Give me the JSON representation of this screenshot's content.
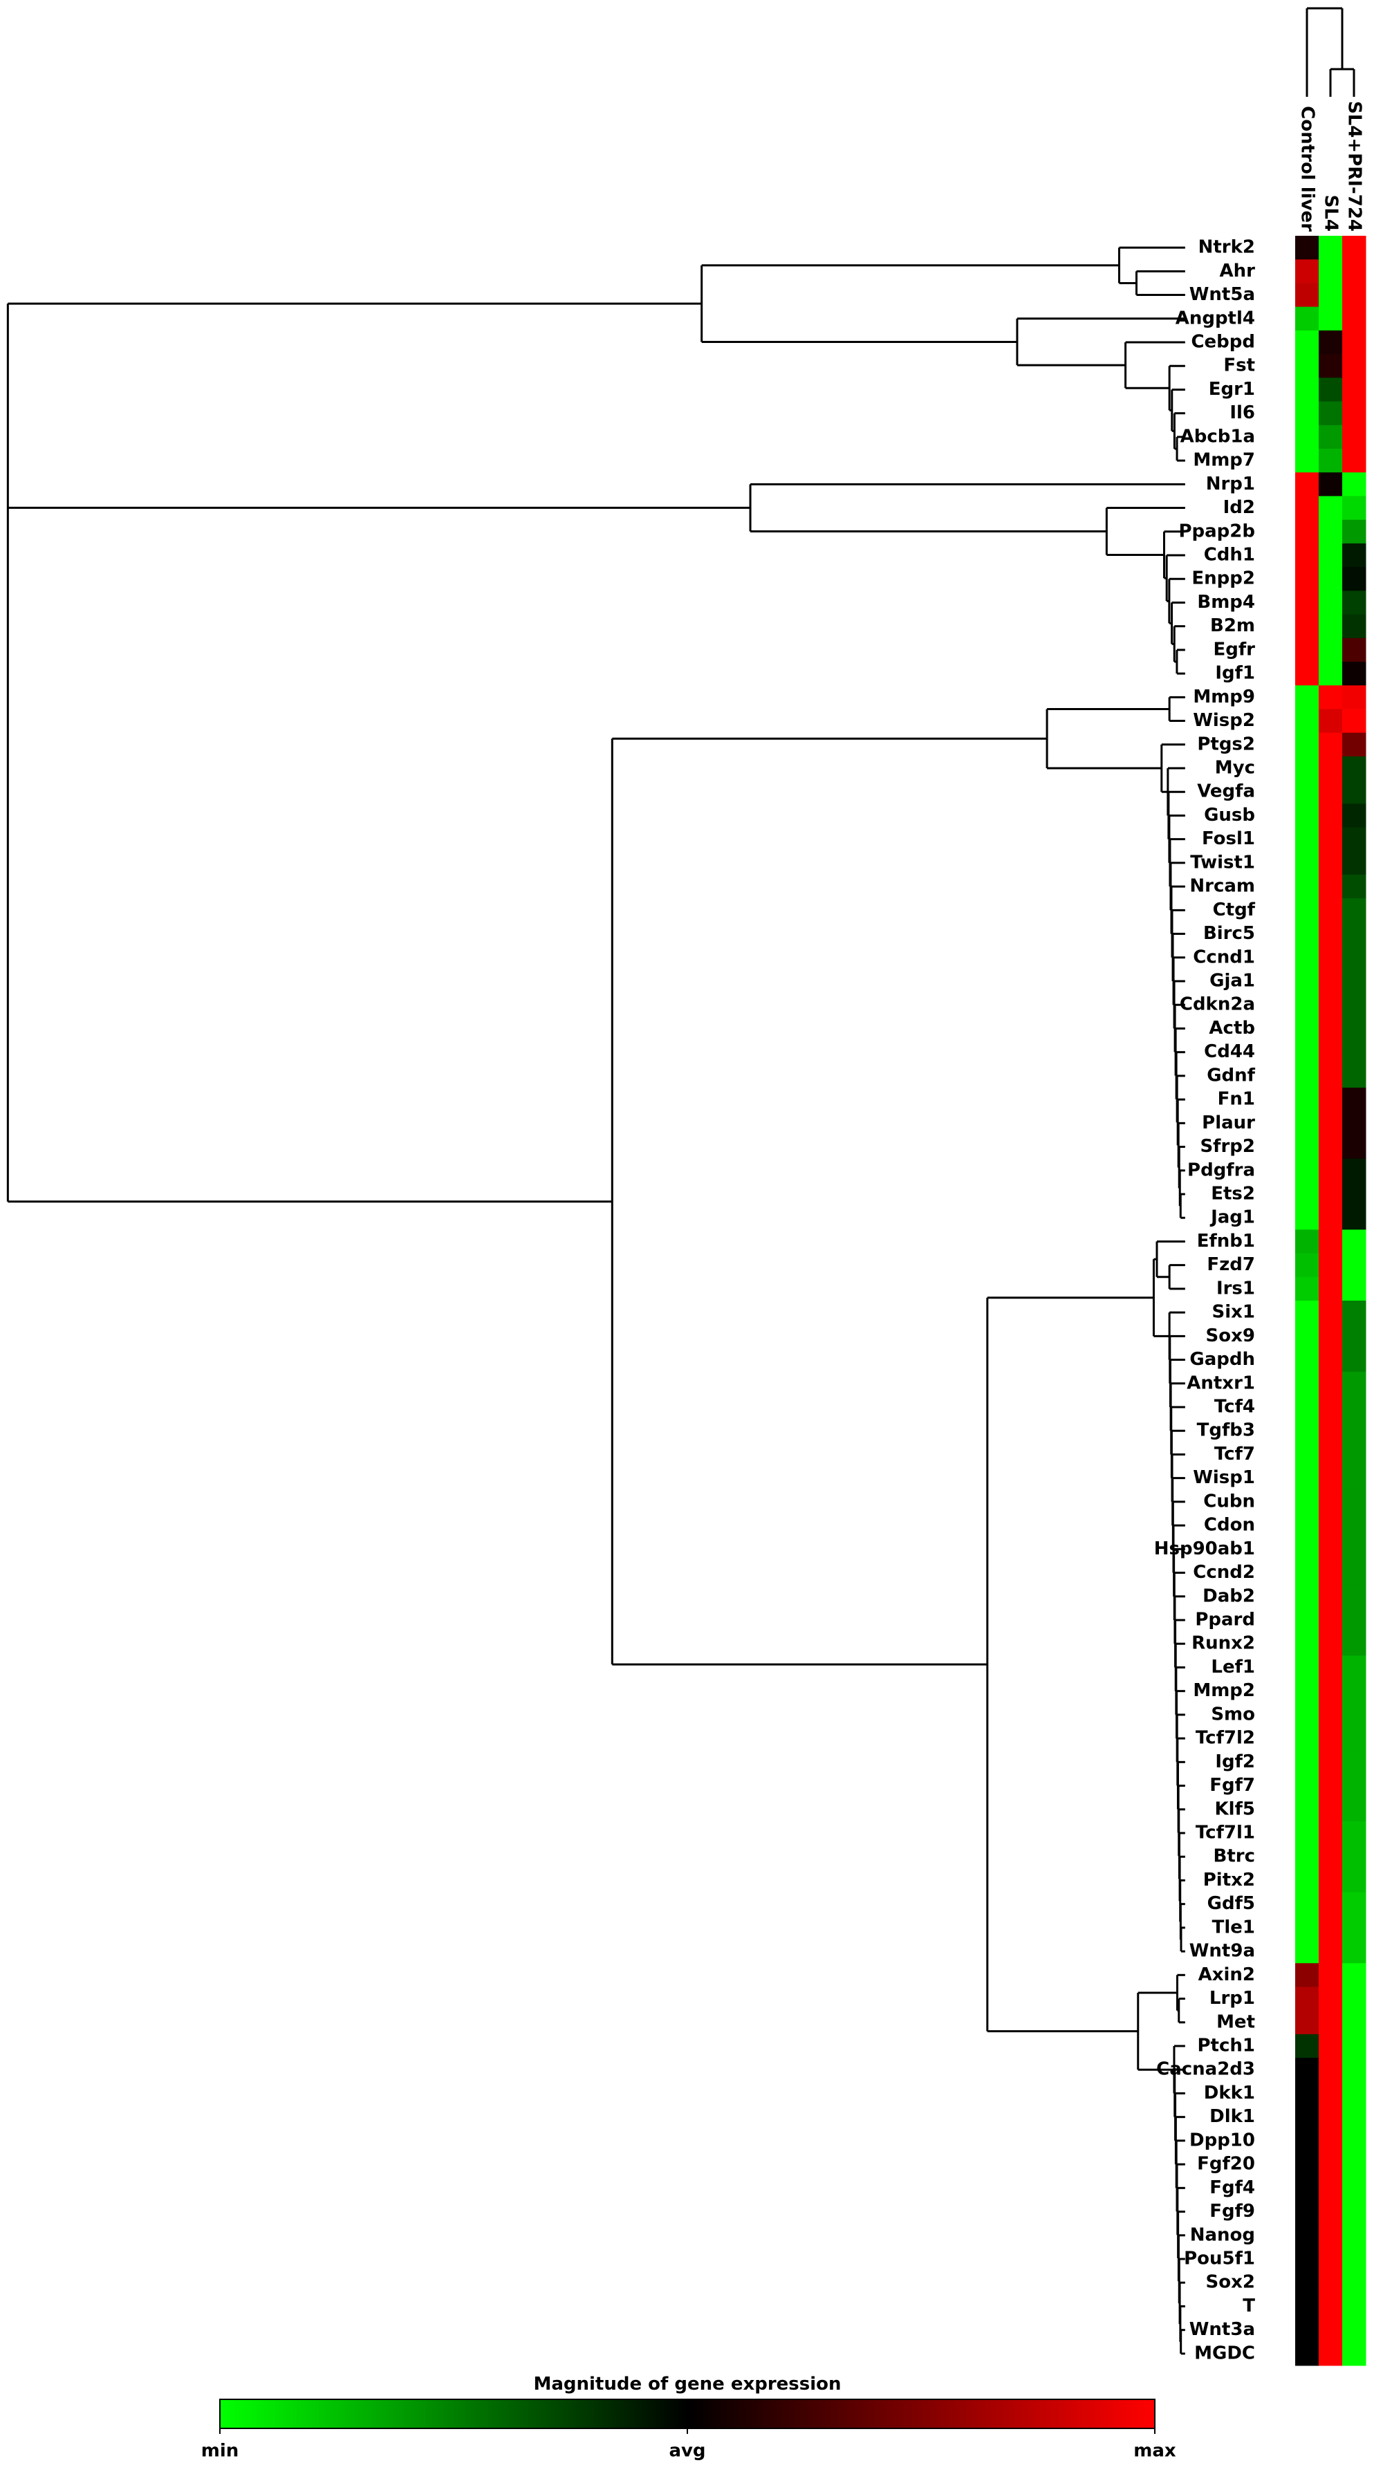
{
  "chart_data": {
    "type": "heatmap",
    "columns": [
      "Control liver",
      "SL4",
      "SL4+PRI-724"
    ],
    "rows": [
      "Ntrk2",
      "Ahr",
      "Wnt5a",
      "Angptl4",
      "Cebpd",
      "Fst",
      "Egr1",
      "Il6",
      "Abcb1a",
      "Mmp7",
      "Nrp1",
      "Id2",
      "Ppap2b",
      "Cdh1",
      "Enpp2",
      "Bmp4",
      "B2m",
      "Egfr",
      "Igf1",
      "Mmp9",
      "Wisp2",
      "Ptgs2",
      "Myc",
      "Vegfa",
      "Gusb",
      "Fosl1",
      "Twist1",
      "Nrcam",
      "Ctgf",
      "Birc5",
      "Ccnd1",
      "Gja1",
      "Cdkn2a",
      "Actb",
      "Cd44",
      "Gdnf",
      "Fn1",
      "Plaur",
      "Sfrp2",
      "Pdgfra",
      "Ets2",
      "Jag1",
      "Efnb1",
      "Fzd7",
      "Irs1",
      "Six1",
      "Sox9",
      "Gapdh",
      "Antxr1",
      "Tcf4",
      "Tgfb3",
      "Tcf7",
      "Wisp1",
      "Cubn",
      "Cdon",
      "Hsp90ab1",
      "Ccnd2",
      "Dab2",
      "Ppard",
      "Runx2",
      "Lef1",
      "Mmp2",
      "Smo",
      "Tcf7l2",
      "Igf2",
      "Fgf7",
      "Klf5",
      "Tcf7l1",
      "Btrc",
      "Pitx2",
      "Gdf5",
      "Tle1",
      "Wnt9a",
      "Axin2",
      "Lrp1",
      "Met",
      "Ptch1",
      "Cacna2d3",
      "Dkk1",
      "Dlk1",
      "Dpp10",
      "Fgf20",
      "Fgf4",
      "Fgf9",
      "Nanog",
      "Pou5f1",
      "Sox2",
      "T",
      "Wnt3a",
      "MGDC"
    ],
    "values": [
      [
        0.1,
        -1,
        1
      ],
      [
        0.8,
        -1,
        1
      ],
      [
        0.75,
        -1,
        1
      ],
      [
        -0.8,
        -1,
        1
      ],
      [
        -1,
        0.1,
        1
      ],
      [
        -1,
        0.15,
        1
      ],
      [
        -1,
        -0.3,
        1
      ],
      [
        -1,
        -0.45,
        1
      ],
      [
        -1,
        -0.6,
        1
      ],
      [
        -1,
        -0.7,
        1
      ],
      [
        1,
        0.05,
        -1
      ],
      [
        1,
        -1,
        -0.85
      ],
      [
        1,
        -1,
        -0.6
      ],
      [
        1,
        -1,
        -0.1
      ],
      [
        1,
        -1,
        -0.05
      ],
      [
        1,
        -1,
        -0.25
      ],
      [
        1,
        -1,
        -0.2
      ],
      [
        1,
        -1,
        0.3
      ],
      [
        1,
        -1,
        0.05
      ],
      [
        -1,
        1,
        0.95
      ],
      [
        -1,
        0.85,
        1
      ],
      [
        -1,
        1,
        0.45
      ],
      [
        -1,
        1,
        -0.25
      ],
      [
        -1,
        1,
        -0.25
      ],
      [
        -1,
        1,
        -0.15
      ],
      [
        -1,
        1,
        -0.2
      ],
      [
        -1,
        1,
        -0.2
      ],
      [
        -1,
        1,
        -0.3
      ],
      [
        -1,
        1,
        -0.4
      ],
      [
        -1,
        1,
        -0.4
      ],
      [
        -1,
        1,
        -0.4
      ],
      [
        -1,
        1,
        -0.4
      ],
      [
        -1,
        1,
        -0.4
      ],
      [
        -1,
        1,
        -0.4
      ],
      [
        -1,
        1,
        -0.4
      ],
      [
        -1,
        1,
        -0.4
      ],
      [
        -1,
        1,
        0.1
      ],
      [
        -1,
        1,
        0.1
      ],
      [
        -1,
        1,
        0.1
      ],
      [
        -1,
        1,
        -0.1
      ],
      [
        -1,
        1,
        -0.1
      ],
      [
        -1,
        1,
        -0.1
      ],
      [
        -0.7,
        1,
        -1
      ],
      [
        -0.75,
        1,
        -1
      ],
      [
        -0.8,
        1,
        -1
      ],
      [
        -1,
        1,
        -0.5
      ],
      [
        -1,
        1,
        -0.5
      ],
      [
        -1,
        1,
        -0.5
      ],
      [
        -1,
        1,
        -0.6
      ],
      [
        -1,
        1,
        -0.6
      ],
      [
        -1,
        1,
        -0.6
      ],
      [
        -1,
        1,
        -0.6
      ],
      [
        -1,
        1,
        -0.6
      ],
      [
        -1,
        1,
        -0.6
      ],
      [
        -1,
        1,
        -0.6
      ],
      [
        -1,
        1,
        -0.6
      ],
      [
        -1,
        1,
        -0.6
      ],
      [
        -1,
        1,
        -0.6
      ],
      [
        -1,
        1,
        -0.6
      ],
      [
        -1,
        1,
        -0.6
      ],
      [
        -1,
        1,
        -0.7
      ],
      [
        -1,
        1,
        -0.7
      ],
      [
        -1,
        1,
        -0.7
      ],
      [
        -1,
        1,
        -0.7
      ],
      [
        -1,
        1,
        -0.7
      ],
      [
        -1,
        1,
        -0.7
      ],
      [
        -1,
        1,
        -0.7
      ],
      [
        -1,
        1,
        -0.75
      ],
      [
        -1,
        1,
        -0.75
      ],
      [
        -1,
        1,
        -0.75
      ],
      [
        -1,
        1,
        -0.8
      ],
      [
        -1,
        1,
        -0.8
      ],
      [
        -1,
        1,
        -0.8
      ],
      [
        0.55,
        1,
        -1
      ],
      [
        0.7,
        1,
        -1
      ],
      [
        0.7,
        1,
        -1
      ],
      [
        -0.2,
        1,
        -1
      ],
      [
        0,
        1,
        -1
      ],
      [
        0,
        1,
        -1
      ],
      [
        0,
        1,
        -1
      ],
      [
        0,
        1,
        -1
      ],
      [
        0,
        1,
        -1
      ],
      [
        0,
        1,
        -1
      ],
      [
        0,
        1,
        -1
      ],
      [
        0,
        1,
        -1
      ],
      [
        0,
        1,
        -1
      ],
      [
        0,
        1,
        -1
      ],
      [
        0,
        1,
        -1
      ],
      [
        0,
        1,
        -1
      ],
      [
        0,
        1,
        -1
      ]
    ],
    "colorscale": [
      "#00ff00",
      "#000000",
      "#ff0000"
    ],
    "clim": [
      -1,
      1
    ],
    "colorbar_title": "Magnitude of gene expression",
    "colorbar_ticks": [
      {
        "value": -1,
        "label": "min"
      },
      {
        "value": 0,
        "label": "avg"
      },
      {
        "value": 1,
        "label": "max"
      }
    ]
  }
}
